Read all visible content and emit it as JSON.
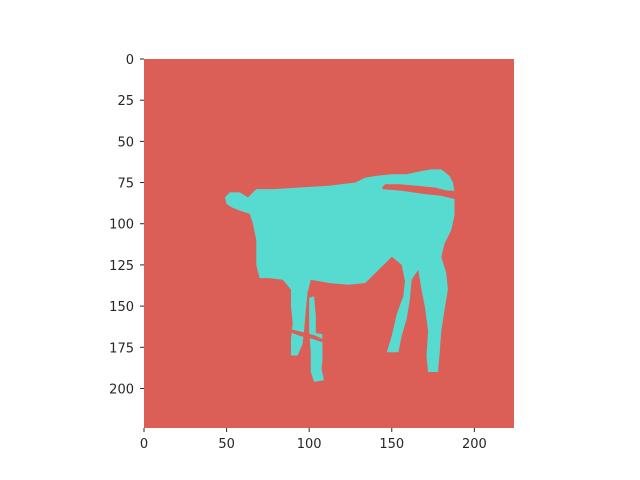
{
  "chart_data": {
    "type": "heatmap",
    "title": "",
    "xlabel": "",
    "ylabel": "",
    "xlim": [
      0,
      224
    ],
    "ylim": [
      224,
      0
    ],
    "grid": false,
    "legend": "none",
    "x_ticks": [
      0,
      50,
      100,
      150,
      200
    ],
    "y_ticks": [
      0,
      25,
      50,
      75,
      100,
      125,
      150,
      175,
      200
    ],
    "classes": [
      {
        "value": 0,
        "color": "#db5f57"
      },
      {
        "value": 1,
        "color": "#57dbd0"
      }
    ],
    "foreground_regions": [
      {
        "part": "body",
        "polygon": [
          [
            49,
            84
          ],
          [
            52,
            81
          ],
          [
            58,
            81
          ],
          [
            63,
            84
          ],
          [
            68,
            79
          ],
          [
            79,
            79
          ],
          [
            94,
            78
          ],
          [
            112,
            77
          ],
          [
            128,
            75
          ],
          [
            134,
            72
          ],
          [
            140,
            71
          ],
          [
            150,
            70
          ],
          [
            159,
            70
          ],
          [
            168,
            68
          ],
          [
            174,
            67
          ],
          [
            180,
            67
          ],
          [
            185,
            71
          ],
          [
            187,
            75
          ],
          [
            188,
            80
          ],
          [
            184,
            80
          ],
          [
            176,
            78
          ],
          [
            165,
            77
          ],
          [
            155,
            76
          ],
          [
            146,
            76
          ],
          [
            144,
            79
          ],
          [
            156,
            80
          ],
          [
            170,
            82
          ],
          [
            180,
            83
          ],
          [
            188,
            85
          ],
          [
            188,
            95
          ],
          [
            186,
            104
          ],
          [
            182,
            112
          ],
          [
            180,
            120
          ],
          [
            183,
            130
          ],
          [
            184,
            140
          ],
          [
            182,
            152
          ],
          [
            180,
            165
          ],
          [
            179,
            178
          ],
          [
            178,
            190
          ],
          [
            172,
            190
          ],
          [
            171,
            180
          ],
          [
            172,
            165
          ],
          [
            170,
            150
          ],
          [
            168,
            140
          ],
          [
            166,
            128
          ],
          [
            162,
            134
          ],
          [
            161,
            146
          ],
          [
            159,
            158
          ],
          [
            156,
            168
          ],
          [
            154,
            178
          ],
          [
            147,
            178
          ],
          [
            150,
            168
          ],
          [
            153,
            155
          ],
          [
            157,
            144
          ],
          [
            158,
            135
          ],
          [
            156,
            125
          ],
          [
            150,
            120
          ],
          [
            142,
            128
          ],
          [
            134,
            136
          ],
          [
            124,
            137
          ],
          [
            112,
            136
          ],
          [
            101,
            134
          ],
          [
            99,
            142
          ],
          [
            98,
            152
          ],
          [
            97,
            164
          ],
          [
            96,
            173
          ],
          [
            93,
            180
          ],
          [
            89,
            180
          ],
          [
            89,
            170
          ],
          [
            90,
            160
          ],
          [
            89,
            150
          ],
          [
            89,
            140
          ],
          [
            84,
            134
          ],
          [
            76,
            133
          ],
          [
            70,
            133
          ],
          [
            68,
            125
          ],
          [
            68,
            110
          ],
          [
            66,
            100
          ],
          [
            64,
            94
          ],
          [
            58,
            92
          ],
          [
            53,
            90
          ],
          [
            50,
            88
          ]
        ]
      },
      {
        "part": "front-leg",
        "polygon": [
          [
            100,
            145
          ],
          [
            103,
            144
          ],
          [
            104,
            156
          ],
          [
            104,
            168
          ],
          [
            105,
            178
          ],
          [
            107,
            186
          ],
          [
            109,
            195
          ],
          [
            103,
            196
          ],
          [
            101,
            190
          ],
          [
            101,
            178
          ],
          [
            100,
            166
          ],
          [
            100,
            156
          ]
        ]
      },
      {
        "part": "front-hoof",
        "polygon": [
          [
            102,
            166
          ],
          [
            108,
            167
          ],
          [
            108,
            173
          ],
          [
            108,
            183
          ],
          [
            107,
            193
          ],
          [
            103,
            193
          ],
          [
            102,
            180
          ]
        ]
      },
      {
        "part": "rear-hoof",
        "polygon": [
          [
            172,
            165
          ],
          [
            178,
            166
          ],
          [
            178,
            178
          ],
          [
            178,
            190
          ],
          [
            172,
            190
          ],
          [
            172,
            178
          ]
        ]
      }
    ],
    "background_stripes": [
      {
        "part": "tail-gap",
        "polygon": [
          [
            146,
            76
          ],
          [
            160,
            77
          ],
          [
            172,
            78
          ],
          [
            184,
            80
          ],
          [
            188,
            80
          ],
          [
            188,
            82
          ],
          [
            176,
            81
          ],
          [
            162,
            79
          ],
          [
            150,
            78
          ],
          [
            144,
            78
          ]
        ]
      },
      {
        "part": "leg-gap",
        "polygon": [
          [
            89,
            164
          ],
          [
            97,
            166
          ],
          [
            104,
            168
          ],
          [
            108,
            170
          ],
          [
            108,
            172
          ],
          [
            102,
            170
          ],
          [
            94,
            168
          ],
          [
            89,
            166
          ]
        ]
      }
    ]
  }
}
